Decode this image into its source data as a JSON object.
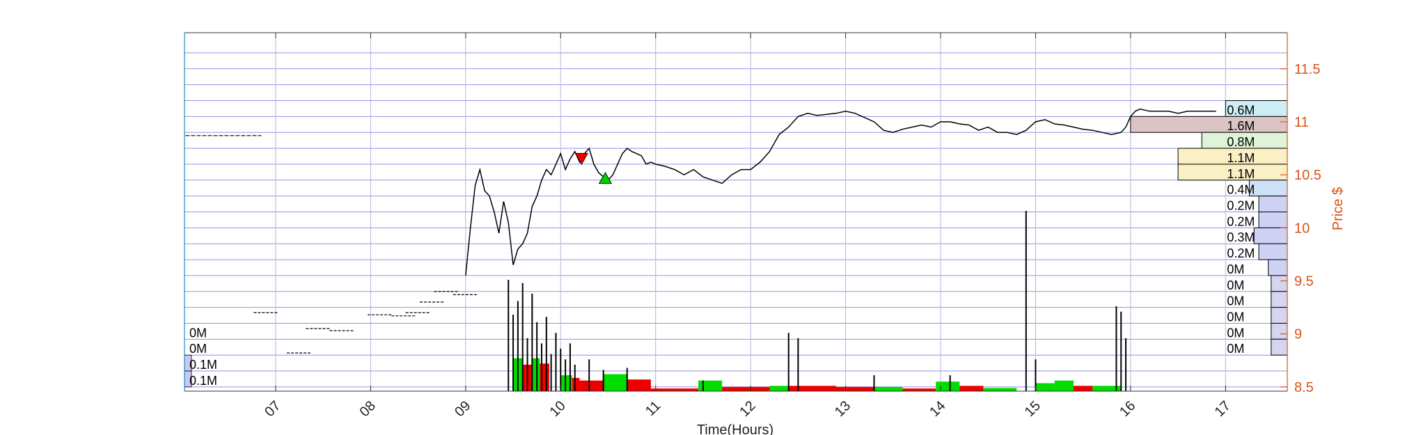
{
  "chart_data": {
    "type": "line",
    "title": "",
    "xlabel": "Time(Hours)",
    "ylabel": "Price $",
    "xlim": [
      6.04,
      17.65
    ],
    "ylim": [
      8.46,
      11.84
    ],
    "x_ticks": [
      {
        "value": 7,
        "label": "07"
      },
      {
        "value": 8,
        "label": "08"
      },
      {
        "value": 9,
        "label": "09"
      },
      {
        "value": 10,
        "label": "10"
      },
      {
        "value": 11,
        "label": "11"
      },
      {
        "value": 12,
        "label": "12"
      },
      {
        "value": 13,
        "label": "13"
      },
      {
        "value": 14,
        "label": "14"
      },
      {
        "value": 15,
        "label": "15"
      },
      {
        "value": 16,
        "label": "16"
      },
      {
        "value": 17,
        "label": "17"
      }
    ],
    "y_ticks": [
      {
        "value": 8.5,
        "label": "8.5"
      },
      {
        "value": 9,
        "label": "9"
      },
      {
        "value": 9.5,
        "label": "9.5"
      },
      {
        "value": 10,
        "label": "10"
      },
      {
        "value": 10.5,
        "label": "10.5"
      },
      {
        "value": 11,
        "label": "11"
      },
      {
        "value": 11.5,
        "label": "11.5"
      }
    ],
    "grid": true,
    "colors": {
      "axis_right": "#d95319",
      "frame_left": "#0072bd",
      "grid": "#8080e0",
      "buy": "#00dd00",
      "sell": "#ee0000",
      "price": "#000000"
    },
    "price_series": {
      "name": "",
      "x": [
        6.05,
        6.2,
        6.4,
        6.6,
        6.85,
        9.0,
        9.05,
        9.1,
        9.15,
        9.2,
        9.25,
        9.3,
        9.35,
        9.4,
        9.45,
        9.5,
        9.55,
        9.6,
        9.65,
        9.7,
        9.75,
        9.8,
        9.85,
        9.9,
        9.95,
        10.0,
        10.05,
        10.1,
        10.15,
        10.2,
        10.25,
        10.3,
        10.35,
        10.4,
        10.45,
        10.5,
        10.55,
        10.6,
        10.65,
        10.7,
        10.75,
        10.8,
        10.85,
        10.9,
        10.95,
        11.0,
        11.1,
        11.2,
        11.3,
        11.4,
        11.5,
        11.6,
        11.7,
        11.8,
        11.9,
        12.0,
        12.1,
        12.2,
        12.3,
        12.4,
        12.5,
        12.6,
        12.7,
        12.8,
        12.9,
        13.0,
        13.1,
        13.2,
        13.3,
        13.4,
        13.5,
        13.6,
        13.7,
        13.8,
        13.9,
        14.0,
        14.1,
        14.2,
        14.3,
        14.4,
        14.5,
        14.6,
        14.7,
        14.8,
        14.9,
        15.0,
        15.1,
        15.2,
        15.3,
        15.4,
        15.5,
        15.6,
        15.7,
        15.8,
        15.9,
        15.95,
        16.0,
        16.05,
        16.1,
        16.2,
        16.3,
        16.4,
        16.5,
        16.6,
        16.7,
        16.8,
        16.9
      ],
      "y": [
        10.87,
        10.87,
        10.87,
        10.87,
        10.87,
        9.55,
        10.0,
        10.4,
        10.55,
        10.35,
        10.3,
        10.15,
        9.95,
        10.25,
        10.05,
        9.65,
        9.8,
        9.85,
        9.95,
        10.2,
        10.3,
        10.45,
        10.55,
        10.5,
        10.6,
        10.7,
        10.55,
        10.65,
        10.72,
        10.62,
        10.7,
        10.75,
        10.6,
        10.52,
        10.48,
        10.45,
        10.5,
        10.6,
        10.7,
        10.75,
        10.72,
        10.7,
        10.68,
        10.6,
        10.62,
        10.6,
        10.58,
        10.55,
        10.5,
        10.55,
        10.48,
        10.45,
        10.42,
        10.5,
        10.55,
        10.55,
        10.62,
        10.72,
        10.88,
        10.95,
        11.05,
        11.08,
        11.06,
        11.07,
        11.08,
        11.1,
        11.08,
        11.04,
        11.0,
        10.92,
        10.9,
        10.93,
        10.95,
        10.97,
        10.95,
        11.0,
        11.0,
        10.98,
        10.97,
        10.92,
        10.95,
        10.9,
        10.9,
        10.88,
        10.92,
        11.0,
        11.02,
        10.98,
        10.97,
        10.95,
        10.93,
        10.92,
        10.9,
        10.88,
        10.9,
        10.95,
        11.05,
        11.1,
        11.12,
        11.1,
        11.1,
        11.1,
        11.08,
        11.1,
        11.1,
        11.1,
        11.1
      ]
    },
    "premarket_ticks": [
      {
        "x": 6.9,
        "y": 9.2
      },
      {
        "x": 7.25,
        "y": 8.82
      },
      {
        "x": 7.45,
        "y": 9.05
      },
      {
        "x": 7.7,
        "y": 9.03
      },
      {
        "x": 8.1,
        "y": 9.18
      },
      {
        "x": 8.35,
        "y": 9.17
      },
      {
        "x": 8.5,
        "y": 9.2
      },
      {
        "x": 8.65,
        "y": 9.3
      },
      {
        "x": 8.8,
        "y": 9.4
      },
      {
        "x": 9.0,
        "y": 9.37
      }
    ],
    "markers": [
      {
        "type": "sell",
        "x": 10.22,
        "y": 10.65
      },
      {
        "type": "buy",
        "x": 10.47,
        "y": 10.47
      }
    ],
    "volume_bars": [
      {
        "x": 9.45,
        "h": 1.05
      },
      {
        "x": 9.5,
        "h": 0.72
      },
      {
        "x": 9.55,
        "h": 0.85
      },
      {
        "x": 9.6,
        "h": 1.02
      },
      {
        "x": 9.65,
        "h": 0.5
      },
      {
        "x": 9.7,
        "h": 0.92
      },
      {
        "x": 9.75,
        "h": 0.65
      },
      {
        "x": 9.8,
        "h": 0.45
      },
      {
        "x": 9.85,
        "h": 0.7
      },
      {
        "x": 9.9,
        "h": 0.35
      },
      {
        "x": 9.95,
        "h": 0.55
      },
      {
        "x": 10.0,
        "h": 0.4
      },
      {
        "x": 10.05,
        "h": 0.3
      },
      {
        "x": 10.1,
        "h": 0.45
      },
      {
        "x": 10.15,
        "h": 0.25
      },
      {
        "x": 10.3,
        "h": 0.3
      },
      {
        "x": 10.45,
        "h": 0.2
      },
      {
        "x": 10.7,
        "h": 0.22
      },
      {
        "x": 11.5,
        "h": 0.1
      },
      {
        "x": 12.4,
        "h": 0.55
      },
      {
        "x": 12.5,
        "h": 0.5
      },
      {
        "x": 13.3,
        "h": 0.15
      },
      {
        "x": 14.1,
        "h": 0.15
      },
      {
        "x": 14.9,
        "h": 1.7
      },
      {
        "x": 15.0,
        "h": 0.3
      },
      {
        "x": 15.85,
        "h": 0.8
      },
      {
        "x": 15.9,
        "h": 0.75
      },
      {
        "x": 15.95,
        "h": 0.5
      }
    ],
    "flow_blocks": [
      {
        "side": "buy",
        "x0": 9.5,
        "x1": 9.6,
        "h": 0.62
      },
      {
        "side": "sell",
        "x0": 9.6,
        "x1": 9.7,
        "h": 0.5
      },
      {
        "side": "buy",
        "x0": 9.7,
        "x1": 9.78,
        "h": 0.62
      },
      {
        "side": "sell",
        "x0": 9.78,
        "x1": 9.88,
        "h": 0.52
      },
      {
        "side": "buy",
        "x0": 10.0,
        "x1": 10.12,
        "h": 0.3
      },
      {
        "side": "sell",
        "x0": 10.12,
        "x1": 10.2,
        "h": 0.25
      },
      {
        "side": "sell",
        "x0": 10.2,
        "x1": 10.45,
        "h": 0.2
      },
      {
        "side": "buy",
        "x0": 10.45,
        "x1": 10.7,
        "h": 0.32
      },
      {
        "side": "sell",
        "x0": 10.7,
        "x1": 10.95,
        "h": 0.22
      },
      {
        "side": "sell",
        "x0": 10.95,
        "x1": 11.45,
        "h": 0.05
      },
      {
        "side": "buy",
        "x0": 11.45,
        "x1": 11.7,
        "h": 0.2
      },
      {
        "side": "sell",
        "x0": 11.7,
        "x1": 12.2,
        "h": 0.08
      },
      {
        "side": "buy",
        "x0": 12.2,
        "x1": 12.4,
        "h": 0.1
      },
      {
        "side": "sell",
        "x0": 12.4,
        "x1": 12.9,
        "h": 0.1
      },
      {
        "side": "sell",
        "x0": 12.9,
        "x1": 13.3,
        "h": 0.08
      },
      {
        "side": "buy",
        "x0": 13.3,
        "x1": 13.6,
        "h": 0.08
      },
      {
        "side": "sell",
        "x0": 13.6,
        "x1": 13.95,
        "h": 0.05
      },
      {
        "side": "buy",
        "x0": 13.95,
        "x1": 14.2,
        "h": 0.18
      },
      {
        "side": "sell",
        "x0": 14.2,
        "x1": 14.45,
        "h": 0.1
      },
      {
        "side": "buy",
        "x0": 14.45,
        "x1": 14.8,
        "h": 0.06
      },
      {
        "side": "buy",
        "x0": 15.0,
        "x1": 15.2,
        "h": 0.15
      },
      {
        "side": "buy",
        "x0": 15.2,
        "x1": 15.4,
        "h": 0.2
      },
      {
        "side": "sell",
        "x0": 15.4,
        "x1": 15.6,
        "h": 0.1
      },
      {
        "side": "buy",
        "x0": 15.6,
        "x1": 15.9,
        "h": 0.1
      }
    ],
    "right_profile": [
      {
        "label": "0.6M",
        "y0": 11.05,
        "y1": 11.2,
        "x_start": 17.0,
        "fill": "#cdeef5"
      },
      {
        "label": "1.6M",
        "y0": 10.9,
        "y1": 11.05,
        "x_start": 16.0,
        "fill": "#ddc4c4"
      },
      {
        "label": "0.8M",
        "y0": 10.75,
        "y1": 10.9,
        "x_start": 16.75,
        "fill": "#dff3d8"
      },
      {
        "label": "1.1M",
        "y0": 10.6,
        "y1": 10.75,
        "x_start": 16.5,
        "fill": "#fbefc4"
      },
      {
        "label": "1.1M",
        "y0": 10.45,
        "y1": 10.6,
        "x_start": 16.5,
        "fill": "#fbefc4"
      },
      {
        "label": "0.4M",
        "y0": 10.3,
        "y1": 10.45,
        "x_start": 17.25,
        "fill": "#cfe1f8"
      },
      {
        "label": "0.2M",
        "y0": 10.15,
        "y1": 10.3,
        "x_start": 17.35,
        "fill": "#cfd2f5"
      },
      {
        "label": "0.2M",
        "y0": 10.0,
        "y1": 10.15,
        "x_start": 17.35,
        "fill": "#cfd2f5"
      },
      {
        "label": "0.3M",
        "y0": 9.85,
        "y1": 10.0,
        "x_start": 17.3,
        "fill": "#cfd2f5"
      },
      {
        "label": "0.2M",
        "y0": 9.7,
        "y1": 9.85,
        "x_start": 17.35,
        "fill": "#cfd2f5"
      },
      {
        "label": "0M",
        "y0": 9.55,
        "y1": 9.7,
        "x_start": 17.45,
        "fill": "#cfd2f5"
      },
      {
        "label": "0M",
        "y0": 9.4,
        "y1": 9.55,
        "x_start": 17.48,
        "fill": "#d5d5f0"
      },
      {
        "label": "0M",
        "y0": 9.25,
        "y1": 9.4,
        "x_start": 17.48,
        "fill": "#d5d5f0"
      },
      {
        "label": "0M",
        "y0": 9.1,
        "y1": 9.25,
        "x_start": 17.48,
        "fill": "#d5d5f0"
      },
      {
        "label": "0M",
        "y0": 8.95,
        "y1": 9.1,
        "x_start": 17.48,
        "fill": "#d5d5f0"
      },
      {
        "label": "0M",
        "y0": 8.8,
        "y1": 8.95,
        "x_start": 17.48,
        "fill": "#d5d5f0"
      }
    ],
    "left_profile": [
      {
        "label": "0M",
        "y0": 8.95,
        "y1": 9.1,
        "w": 0.0
      },
      {
        "label": "0M",
        "y0": 8.8,
        "y1": 8.95,
        "w": 0.0
      },
      {
        "label": "0.1M",
        "y0": 8.65,
        "y1": 8.8,
        "w": 0.05
      },
      {
        "label": "0.1M",
        "y0": 8.5,
        "y1": 8.65,
        "w": 0.05
      }
    ]
  }
}
